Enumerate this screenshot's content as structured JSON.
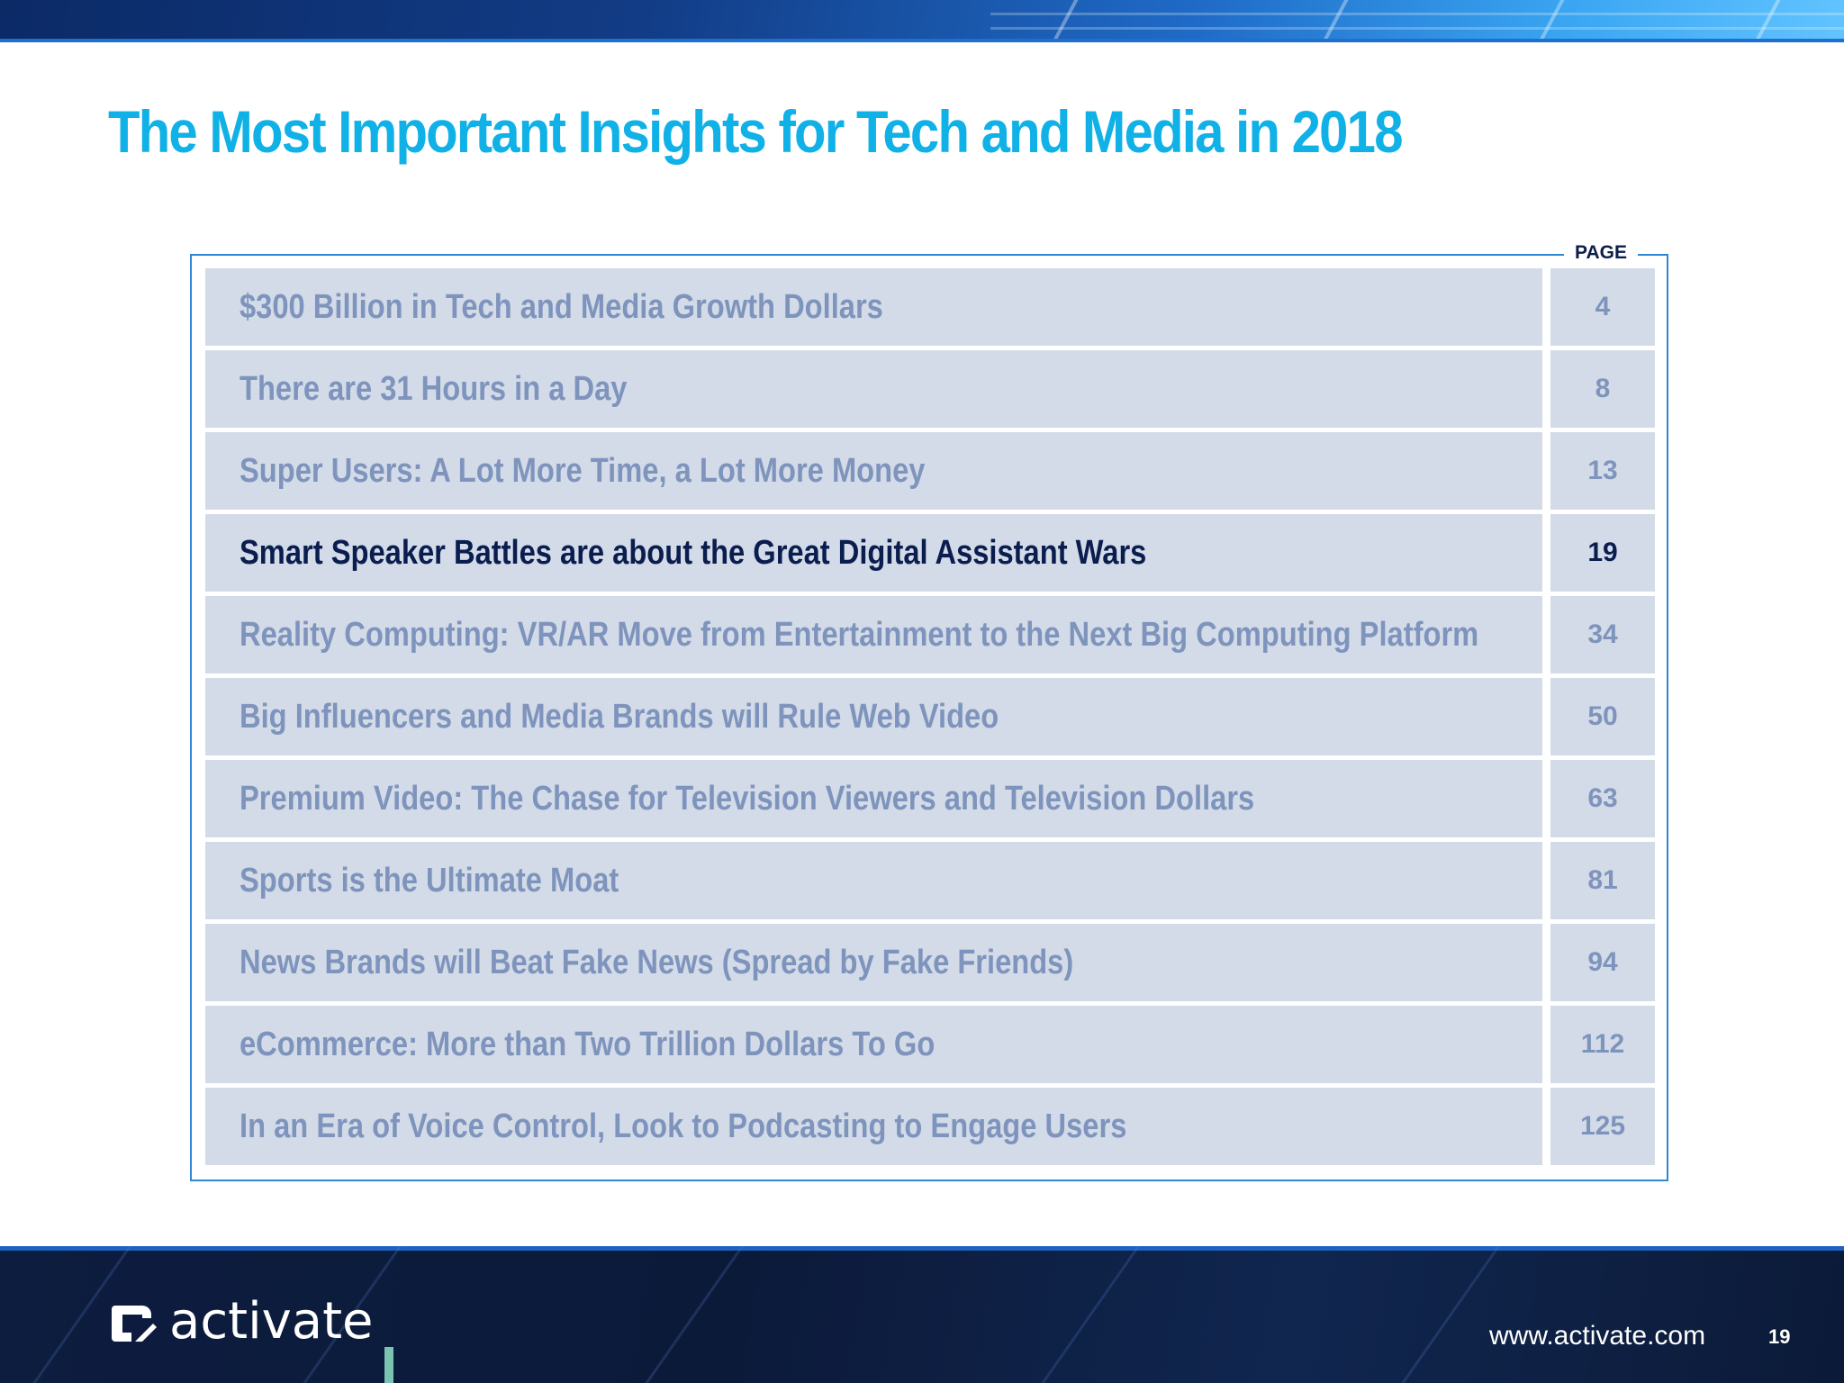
{
  "title": "The Most Important Insights for Tech and Media in 2018",
  "toc": {
    "page_header": "PAGE",
    "items": [
      {
        "label": "$300 Billion in Tech and Media Growth Dollars",
        "page": "4"
      },
      {
        "label": "There are 31 Hours in a Day",
        "page": "8"
      },
      {
        "label": "Super Users: A Lot More Time, a Lot More Money",
        "page": "13"
      },
      {
        "label": "Smart Speaker Battles are about the Great Digital Assistant Wars",
        "page": "19"
      },
      {
        "label": "Reality Computing: VR/AR Move from Entertainment to the Next Big Computing Platform",
        "page": "34"
      },
      {
        "label": "Big Influencers and Media Brands will Rule Web Video",
        "page": "50"
      },
      {
        "label": "Premium Video: The Chase for Television Viewers and Television Dollars",
        "page": "63"
      },
      {
        "label": "Sports is the Ultimate Moat",
        "page": "81"
      },
      {
        "label": "News Brands will Beat Fake News (Spread by Fake Friends)",
        "page": "94"
      },
      {
        "label": "eCommerce: More than Two Trillion Dollars To Go",
        "page": "112"
      },
      {
        "label": "In an Era of Voice Control, Look to Podcasting to Engage Users",
        "page": "125"
      }
    ],
    "active_index": 3,
    "colors": {
      "active": "#0b1d4f",
      "inactive": "#7f94bd",
      "row_bg": "#d2dbe7",
      "frame": "#2f86d1"
    }
  },
  "footer": {
    "logo_text": "activate",
    "logo_icon": "activate-logo-icon",
    "url": "www.activate.com",
    "page_number": "19"
  },
  "colors": {
    "title": "#0fb1e6",
    "footer_bg": "#0d1d3f"
  }
}
